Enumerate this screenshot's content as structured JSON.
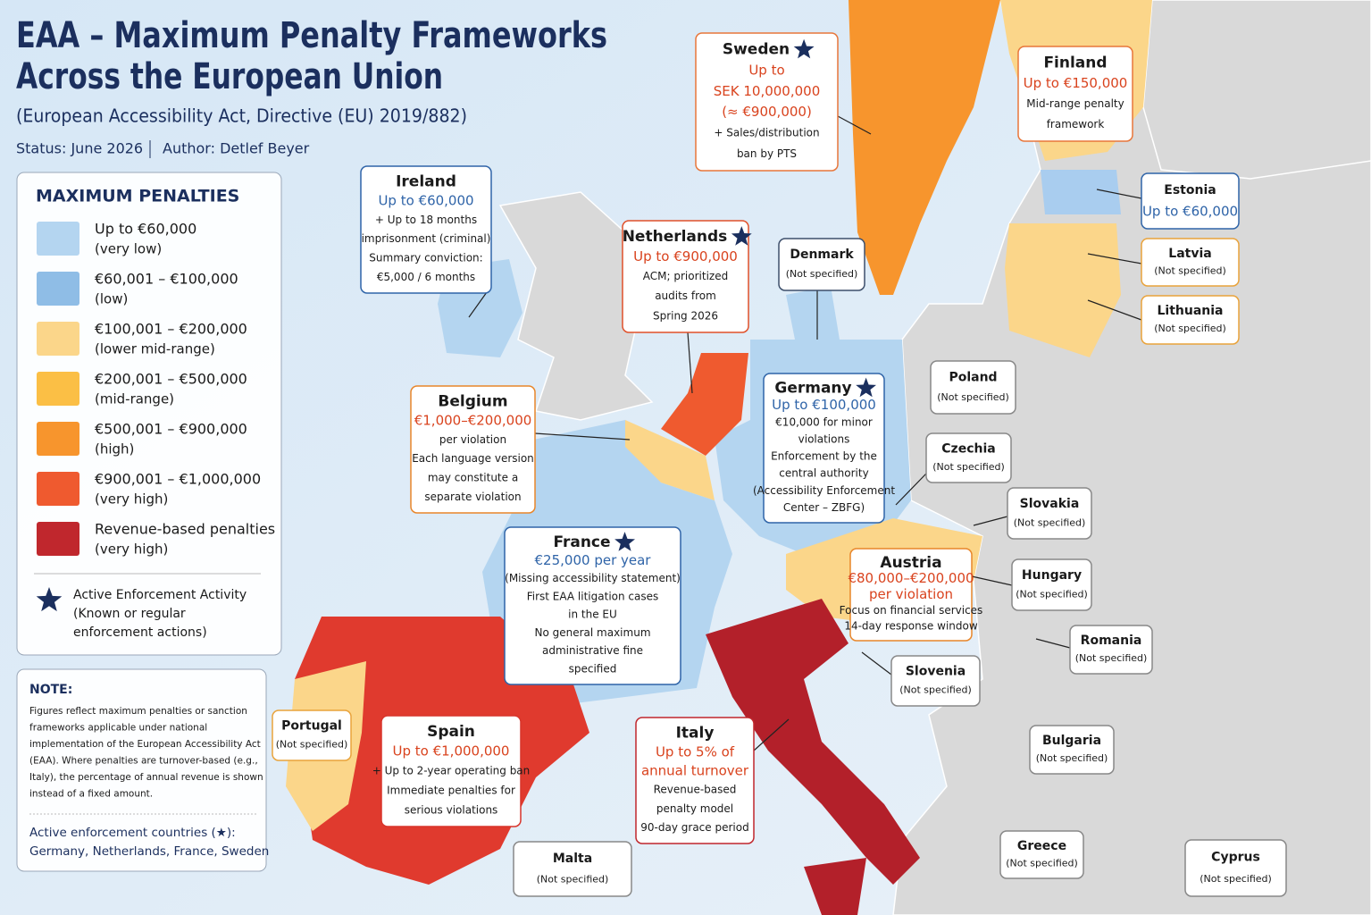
{
  "header": {
    "title": [
      "EAA – Maximum Penalty Frameworks",
      "Across the European Union"
    ],
    "subtitle": "(European Accessibility Act, Directive (EU) 2019/882)",
    "status": "Status: June 2026",
    "author": "Author: Detlef Beyer"
  },
  "legend": {
    "title": "MAXIMUM PENALTIES",
    "items": [
      {
        "label": "Up to €60,000",
        "sublabel": "(very low)",
        "color": "#b4d5f0"
      },
      {
        "label": "€60,001 – €100,000",
        "sublabel": "(low)",
        "color": "#8fbde6"
      },
      {
        "label": "€100,001 – €200,000",
        "sublabel": "(lower mid-range)",
        "color": "#fbd68a"
      },
      {
        "label": "€200,001 – €500,000",
        "sublabel": "(mid-range)",
        "color": "#fbbf45"
      },
      {
        "label": "€500,001 – €900,000",
        "sublabel": "(high)",
        "color": "#f7952d"
      },
      {
        "label": "€900,001 – €1,000,000",
        "sublabel": "(very high)",
        "color": "#ef5a2f"
      },
      {
        "label": "Revenue-based penalties",
        "sublabel": "(very high)",
        "color": "#c0272d"
      }
    ],
    "star_label": [
      "Active Enforcement Activity",
      "(Known or regular",
      "enforcement actions)"
    ]
  },
  "note": {
    "title": "NOTE:",
    "text": [
      "Figures reflect maximum penalties or sanction",
      "frameworks applicable under national",
      "implementation of the European Accessibility Act",
      "(EAA). Where penalties are turnover-based (e.g.,",
      "Italy), the percentage of annual revenue is shown",
      "instead of a fixed amount."
    ],
    "active_label": "Active enforcement countries (★):",
    "active_countries": "Germany, Netherlands, France, Sweden"
  },
  "countries": [
    {
      "name": "Sweden",
      "active": true,
      "color": "#e8763a",
      "penalty": [
        "Up to",
        "SEK 10,000,000",
        "(≈ €900,000)"
      ],
      "details": [
        "+ Sales/distribution",
        "ban by PTS"
      ]
    },
    {
      "name": "Finland",
      "color": "#e8763a",
      "penalty": [
        "Up to €150,000"
      ],
      "details": [
        "Mid-range penalty",
        "framework"
      ]
    },
    {
      "name": "Ireland",
      "color": "#2f64a8",
      "penalty": [
        "Up to €60,000"
      ],
      "details": [
        "+ Up to 18 months",
        "imprisonment (criminal)",
        "Summary conviction:",
        "€5,000 / 6 months"
      ]
    },
    {
      "name": "Netherlands",
      "active": true,
      "color": "#e0502a",
      "penalty": [
        "Up to €900,000"
      ],
      "details": [
        "ACM; prioritized",
        "audits from",
        "Spring 2026"
      ]
    },
    {
      "name": "Denmark",
      "color": "#3d4f6b",
      "penalty": [],
      "details": [
        "(Not specified)"
      ]
    },
    {
      "name": "Estonia",
      "color": "#2f64a8",
      "penalty": [
        "Up to €60,000"
      ],
      "details": []
    },
    {
      "name": "Latvia",
      "color": "#e9a33b",
      "penalty": [],
      "details": [
        "(Not specified)"
      ]
    },
    {
      "name": "Lithuania",
      "color": "#e9a33b",
      "penalty": [],
      "details": [
        "(Not specified)"
      ]
    },
    {
      "name": "Belgium",
      "color": "#e8862a",
      "penalty": [
        "€1,000–€200,000"
      ],
      "details": [
        "per violation",
        "Each language version",
        "may constitute a",
        "separate violation"
      ]
    },
    {
      "name": "Germany",
      "active": true,
      "color": "#2f64a8",
      "penalty": [
        "Up to €100,000"
      ],
      "details": [
        "€10,000 for minor",
        "violations",
        "Enforcement by the",
        "central authority",
        "(Accessibility Enforcement",
        "Center – ZBFG)"
      ]
    },
    {
      "name": "Poland",
      "color": "#888888",
      "penalty": [],
      "details": [
        "(Not specified)"
      ]
    },
    {
      "name": "Czechia",
      "color": "#888888",
      "penalty": [],
      "details": [
        "(Not specified)"
      ]
    },
    {
      "name": "Slovakia",
      "color": "#888888",
      "penalty": [],
      "details": [
        "(Not specified)"
      ]
    },
    {
      "name": "France",
      "active": true,
      "color": "#2f64a8",
      "penalty": [
        "€25,000 per year"
      ],
      "details": [
        "(Missing accessibility statement)",
        "First EAA litigation cases",
        "in the EU",
        "No general maximum",
        "administrative fine",
        "specified"
      ]
    },
    {
      "name": "Austria",
      "color": "#e8862a",
      "penalty": [
        "€80,000–€200,000",
        "per violation"
      ],
      "details": [
        "Focus on financial services",
        "14-day response window"
      ]
    },
    {
      "name": "Hungary",
      "color": "#888888",
      "penalty": [],
      "details": [
        "(Not specified)"
      ]
    },
    {
      "name": "Romania",
      "color": "#888888",
      "penalty": [],
      "details": [
        "(Not specified)"
      ]
    },
    {
      "name": "Slovenia",
      "color": "#888888",
      "penalty": [],
      "details": [
        "(Not specified)"
      ]
    },
    {
      "name": "Portugal",
      "color": "#e9a33b",
      "penalty": [],
      "details": [
        "(Not specified)"
      ]
    },
    {
      "name": "Spain",
      "color": "#d8342a",
      "penalty": [
        "Up to €1,000,000"
      ],
      "details": [
        "+ Up to 2-year operating ban",
        "Immediate penalties for",
        "serious violations"
      ]
    },
    {
      "name": "Italy",
      "color": "#c0272d",
      "penalty": [
        "Up to 5% of",
        "annual turnover"
      ],
      "details": [
        "Revenue-based",
        "penalty model",
        "90-day grace period"
      ]
    },
    {
      "name": "Bulgaria",
      "color": "#888888",
      "penalty": [],
      "details": [
        "(Not specified)"
      ]
    },
    {
      "name": "Greece",
      "color": "#888888",
      "penalty": [],
      "details": [
        "(Not specified)"
      ]
    },
    {
      "name": "Malta",
      "color": "#888888",
      "penalty": [],
      "details": [
        "(Not specified)"
      ]
    },
    {
      "name": "Cyprus",
      "color": "#888888",
      "penalty": [],
      "details": [
        "(Not specified)"
      ]
    }
  ]
}
